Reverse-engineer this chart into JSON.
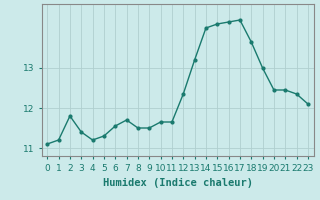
{
  "x": [
    0,
    1,
    2,
    3,
    4,
    5,
    6,
    7,
    8,
    9,
    10,
    11,
    12,
    13,
    14,
    15,
    16,
    17,
    18,
    19,
    20,
    21,
    22,
    23
  ],
  "y": [
    11.1,
    11.2,
    11.8,
    11.4,
    11.2,
    11.3,
    11.55,
    11.7,
    11.5,
    11.5,
    11.65,
    11.65,
    12.35,
    13.2,
    14.0,
    14.1,
    14.15,
    14.2,
    13.65,
    13.0,
    12.45,
    12.45,
    12.35,
    12.1
  ],
  "line_color": "#1a7a6e",
  "marker": "o",
  "markersize": 2.0,
  "linewidth": 1.0,
  "bg_color": "#cceaea",
  "grid_color": "#b0cfcf",
  "xlabel": "Humidex (Indice chaleur)",
  "xlim": [
    -0.5,
    23.5
  ],
  "ylim": [
    10.8,
    14.6
  ],
  "yticks": [
    11,
    12,
    13
  ],
  "xtick_labels": [
    "0",
    "1",
    "2",
    "3",
    "4",
    "5",
    "6",
    "7",
    "8",
    "9",
    "10",
    "11",
    "12",
    "13",
    "14",
    "15",
    "16",
    "17",
    "18",
    "19",
    "20",
    "21",
    "22",
    "23"
  ],
  "tick_fontsize": 6.5,
  "xlabel_fontsize": 7.5
}
